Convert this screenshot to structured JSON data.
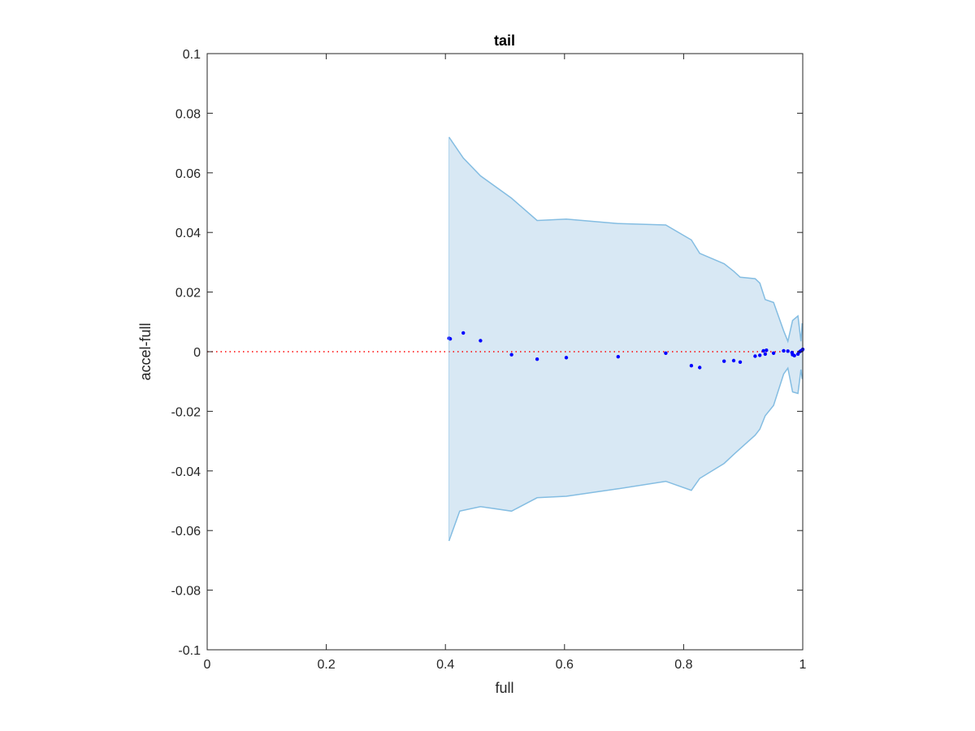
{
  "chart_data": {
    "type": "scatter",
    "title": "tail",
    "xlabel": "full",
    "ylabel": "accel-full",
    "xlim": [
      0,
      1
    ],
    "ylim": [
      -0.1,
      0.1
    ],
    "x_ticks": [
      0,
      0.2,
      0.4,
      0.6,
      0.8,
      1
    ],
    "x_tick_labels": [
      "0",
      "0.2",
      "0.4",
      "0.6",
      "0.8",
      "1"
    ],
    "y_ticks": [
      0.1,
      0.08,
      0.06,
      0.04,
      0.02,
      0,
      -0.02,
      -0.04,
      -0.06,
      -0.08,
      -0.1
    ],
    "y_tick_labels": [
      "0.1",
      "0.08",
      "0.06",
      "0.04",
      "0.02",
      "0",
      "-0.02",
      "-0.04",
      "-0.06",
      "-0.08",
      "-0.1"
    ],
    "grid": false,
    "reference_line": {
      "y": 0,
      "style": "dotted",
      "color": "#ff0000"
    },
    "band": {
      "color_fill": "#d8e8f4",
      "color_edge": "#84bde2",
      "upper": [
        [
          0.406,
          0.072
        ],
        [
          0.43,
          0.065
        ],
        [
          0.459,
          0.059
        ],
        [
          0.511,
          0.0515
        ],
        [
          0.554,
          0.044
        ],
        [
          0.603,
          0.0445
        ],
        [
          0.69,
          0.043
        ],
        [
          0.77,
          0.0425
        ],
        [
          0.813,
          0.0375
        ],
        [
          0.827,
          0.033
        ],
        [
          0.868,
          0.0295
        ],
        [
          0.884,
          0.027
        ],
        [
          0.895,
          0.025
        ],
        [
          0.92,
          0.0245
        ],
        [
          0.928,
          0.023
        ],
        [
          0.937,
          0.0175
        ],
        [
          0.951,
          0.0165
        ],
        [
          0.968,
          0.007
        ],
        [
          0.975,
          0.0035
        ],
        [
          0.983,
          0.0105
        ],
        [
          0.992,
          0.012
        ],
        [
          0.997,
          0.0035
        ],
        [
          0.999,
          0.0095
        ],
        [
          1.0,
          0.009
        ]
      ],
      "lower": [
        [
          0.406,
          -0.0635
        ],
        [
          0.424,
          -0.0535
        ],
        [
          0.459,
          -0.052
        ],
        [
          0.511,
          -0.0535
        ],
        [
          0.554,
          -0.049
        ],
        [
          0.603,
          -0.0485
        ],
        [
          0.69,
          -0.046
        ],
        [
          0.77,
          -0.0435
        ],
        [
          0.813,
          -0.0465
        ],
        [
          0.827,
          -0.0425
        ],
        [
          0.868,
          -0.0375
        ],
        [
          0.884,
          -0.0345
        ],
        [
          0.895,
          -0.0325
        ],
        [
          0.92,
          -0.028
        ],
        [
          0.928,
          -0.026
        ],
        [
          0.937,
          -0.0215
        ],
        [
          0.951,
          -0.018
        ],
        [
          0.968,
          -0.0075
        ],
        [
          0.975,
          -0.0055
        ],
        [
          0.983,
          -0.0135
        ],
        [
          0.992,
          -0.014
        ],
        [
          0.997,
          -0.006
        ],
        [
          0.999,
          -0.009
        ],
        [
          1.0,
          -0.009
        ]
      ]
    },
    "series": [
      {
        "marker_color": "#0000ff",
        "points": [
          [
            0.406,
            0.0045
          ],
          [
            0.408,
            0.0043
          ],
          [
            0.43,
            0.0063
          ],
          [
            0.459,
            0.0037
          ],
          [
            0.511,
            -0.001
          ],
          [
            0.554,
            -0.0025
          ],
          [
            0.603,
            -0.002
          ],
          [
            0.69,
            -0.0017
          ],
          [
            0.77,
            -0.0005
          ],
          [
            0.813,
            -0.0047
          ],
          [
            0.827,
            -0.0053
          ],
          [
            0.868,
            -0.0032
          ],
          [
            0.884,
            -0.003
          ],
          [
            0.895,
            -0.0035
          ],
          [
            0.92,
            -0.0015
          ],
          [
            0.928,
            -0.0012
          ],
          [
            0.934,
            0.0003
          ],
          [
            0.937,
            -0.0008
          ],
          [
            0.939,
            0.0005
          ],
          [
            0.951,
            -0.0005
          ],
          [
            0.968,
            0.0003
          ],
          [
            0.975,
            0.0002
          ],
          [
            0.982,
            -0.0003
          ],
          [
            0.983,
            -0.001
          ],
          [
            0.986,
            -0.0013
          ],
          [
            0.992,
            -0.0008
          ],
          [
            0.995,
            0.0
          ],
          [
            0.997,
            0.0003
          ],
          [
            0.999,
            0.0005
          ],
          [
            1.0,
            0.0008
          ]
        ]
      }
    ]
  }
}
